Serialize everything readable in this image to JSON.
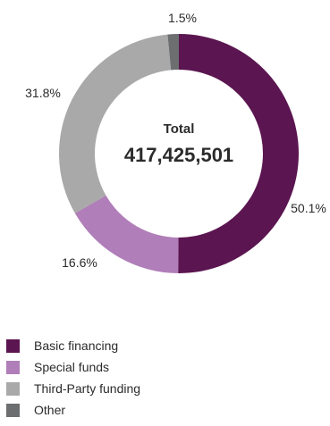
{
  "chart_data": {
    "type": "pie",
    "variant": "donut",
    "center_title": "Total",
    "center_value": "417,425,501",
    "slices": [
      {
        "name": "Basic financing",
        "value": 50.1,
        "label": "50.1%",
        "color": "#5b1550"
      },
      {
        "name": "Special funds",
        "value": 16.6,
        "label": "16.6%",
        "color": "#b07eb8"
      },
      {
        "name": "Third-Party funding",
        "value": 31.8,
        "label": "31.8%",
        "color": "#a9a9a9"
      },
      {
        "name": "Other",
        "value": 1.5,
        "label": "1.5%",
        "color": "#6d6e70"
      }
    ],
    "legend_placement": "bottom-left"
  }
}
